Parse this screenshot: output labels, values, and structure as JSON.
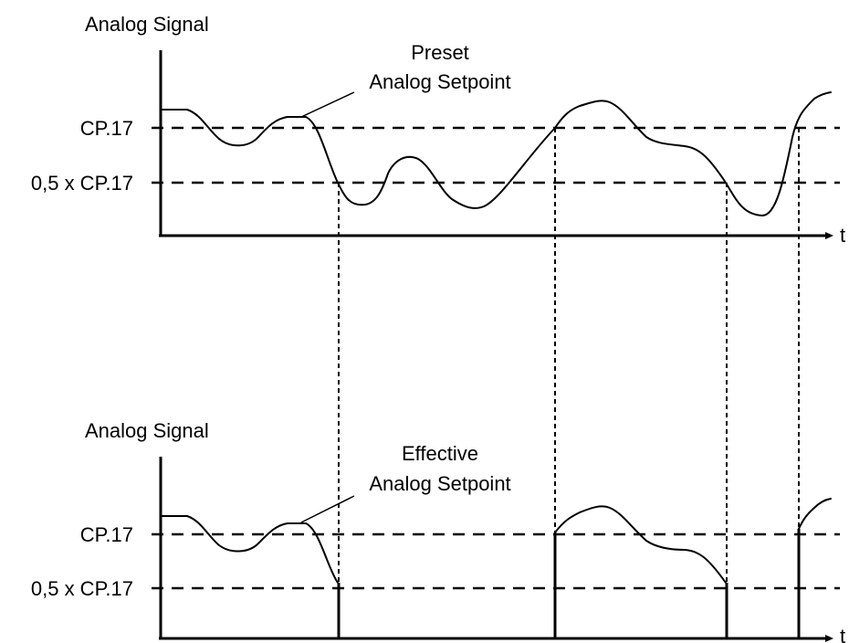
{
  "top_panel": {
    "y_axis_label": "Analog Signal",
    "x_axis_label": "t",
    "threshold_high_label": "CP.17",
    "threshold_low_label": "0,5 x CP.17",
    "curve_label_line1": "Preset",
    "curve_label_line2": "Analog Setpoint"
  },
  "bottom_panel": {
    "y_axis_label": "Analog Signal",
    "x_axis_label": "t",
    "threshold_high_label": "CP.17",
    "threshold_low_label": "0,5 x CP.17",
    "curve_label_line1": "Effective",
    "curve_label_line2": "Analog Setpoint"
  },
  "colors": {
    "line": "#000000",
    "background": "#ffffff"
  }
}
